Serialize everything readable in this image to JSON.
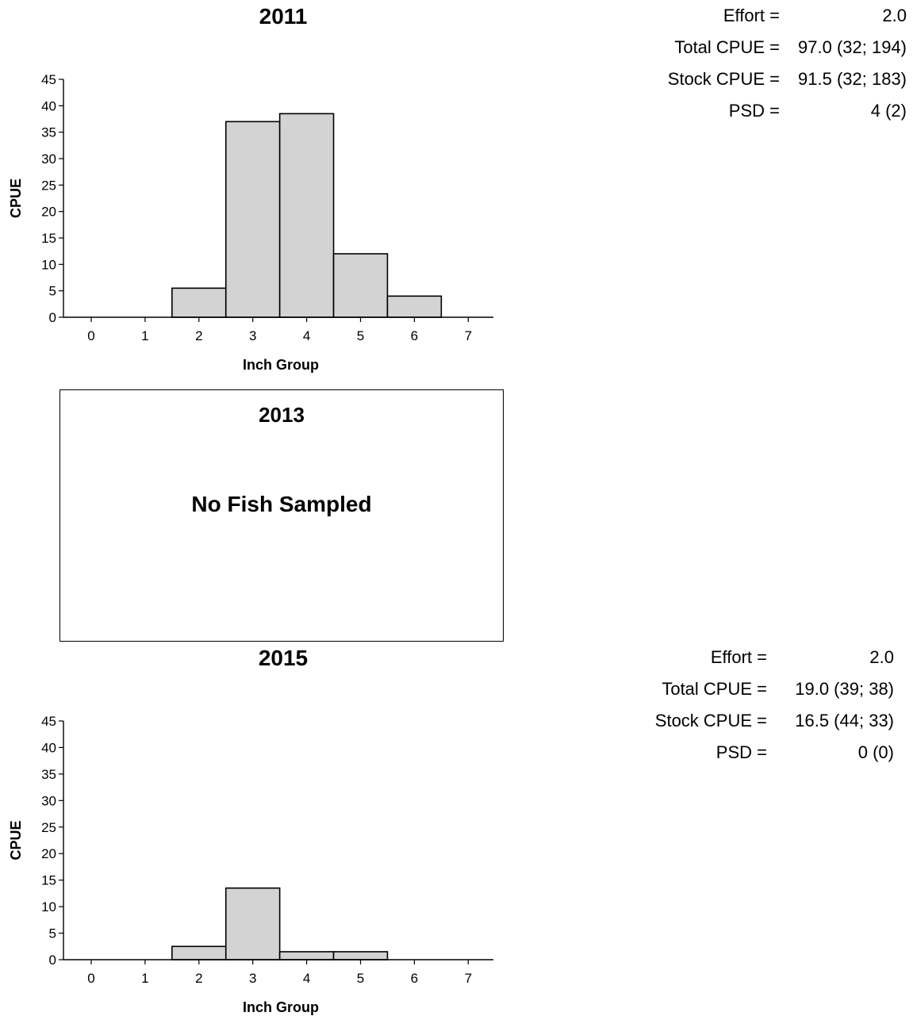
{
  "chart_data": [
    {
      "type": "bar",
      "title": "2011",
      "xlabel": "Inch Group",
      "ylabel": "CPUE",
      "categories": [
        "0",
        "1",
        "2",
        "3",
        "4",
        "5",
        "6",
        "7"
      ],
      "values": [
        0,
        0,
        5.5,
        37,
        38.5,
        12,
        4,
        0
      ],
      "yticks": [
        0,
        5,
        10,
        15,
        20,
        25,
        30,
        35,
        40,
        45
      ],
      "ylim": [
        0,
        45
      ],
      "grid": false,
      "bar_color": "#d3d3d3"
    },
    {
      "type": "bar",
      "title": "2015",
      "xlabel": "Inch Group",
      "ylabel": "CPUE",
      "categories": [
        "0",
        "1",
        "2",
        "3",
        "4",
        "5",
        "6",
        "7"
      ],
      "values": [
        0,
        0,
        2.5,
        13.5,
        1.5,
        1.5,
        0,
        0
      ],
      "yticks": [
        0,
        5,
        10,
        15,
        20,
        25,
        30,
        35,
        40,
        45
      ],
      "ylim": [
        0,
        45
      ],
      "grid": false,
      "bar_color": "#d3d3d3"
    }
  ],
  "stats_2011": [
    {
      "label": "Effort =",
      "value": "2.0"
    },
    {
      "label": "Total CPUE =",
      "value": "97.0 (32; 194)"
    },
    {
      "label": "Stock CPUE =",
      "value": "91.5 (32; 183)"
    },
    {
      "label": "PSD =",
      "value": "4 (2)"
    }
  ],
  "stats_2015": [
    {
      "label": "Effort =",
      "value": "2.0"
    },
    {
      "label": "Total CPUE =",
      "value": "19.0 (39; 38)"
    },
    {
      "label": "Stock CPUE =",
      "value": "16.5 (44; 33)"
    },
    {
      "label": "PSD =",
      "value": "0 (0)"
    }
  ],
  "no_sample_2013": {
    "year": "2013",
    "message": "No Fish Sampled"
  }
}
